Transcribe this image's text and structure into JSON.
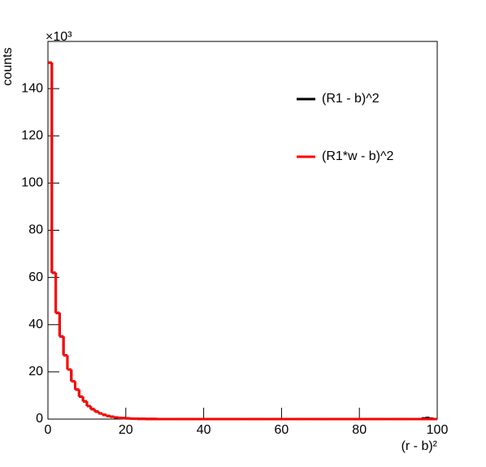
{
  "chart_data": {
    "type": "histogram",
    "y_label": "counts",
    "x_label": "(r - b)²",
    "y_multiplier": "×10³",
    "bins": [
      0,
      1,
      2,
      3,
      4,
      5,
      6,
      7,
      8,
      9,
      10,
      11,
      12,
      13,
      14,
      15,
      16,
      17,
      18,
      19,
      20,
      21,
      22,
      23,
      24,
      25,
      26,
      27,
      28,
      29,
      30,
      31,
      32,
      33,
      34,
      35,
      36,
      37,
      38,
      39,
      40,
      41,
      42,
      43,
      44,
      45,
      46,
      47,
      48,
      49,
      50,
      51,
      52,
      53,
      54,
      55,
      56,
      57,
      58,
      59,
      60,
      61,
      62,
      63,
      64,
      65,
      66,
      67,
      68,
      69,
      70,
      71,
      72,
      73,
      74,
      75,
      76,
      77,
      78,
      79,
      80,
      81,
      82,
      83,
      84,
      85,
      86,
      87,
      88,
      89,
      90,
      91,
      92,
      93,
      94,
      95,
      96,
      97,
      98,
      99,
      100
    ],
    "series": [
      {
        "name": "(R1 - b)^2",
        "color": "#000000",
        "values": [
          151,
          62,
          45,
          35,
          27,
          21,
          16,
          12.5,
          9.5,
          7.5,
          5.5,
          4.2,
          3.2,
          2.4,
          1.8,
          1.3,
          1,
          0.7,
          0.5,
          0.4,
          0.3,
          0.2,
          0.15,
          0.1,
          0.1,
          0.05,
          0.05,
          0.05,
          0,
          0,
          0,
          0,
          0,
          0,
          0,
          0,
          0,
          0,
          0,
          0,
          0,
          0,
          0,
          0,
          0,
          0,
          0,
          0,
          0,
          0,
          0,
          0,
          0,
          0,
          0,
          0,
          0,
          0,
          0,
          0,
          0,
          0,
          0,
          0,
          0,
          0,
          0,
          0,
          0,
          0,
          0,
          0,
          0,
          0,
          0,
          0,
          0,
          0,
          0,
          0,
          0,
          0,
          0,
          0,
          0,
          0,
          0,
          0,
          0,
          0,
          0,
          0,
          0,
          0,
          0,
          0,
          0.3,
          0.5,
          0.2,
          0
        ]
      },
      {
        "name": "(R1*w - b)^2",
        "color": "#ff0000",
        "values": [
          151,
          62,
          45,
          35,
          27,
          21,
          16,
          12.5,
          9.5,
          7.5,
          5.5,
          4.2,
          3.2,
          2.4,
          1.8,
          1.3,
          1,
          0.7,
          0.5,
          0.4,
          0.3,
          0.2,
          0.15,
          0.1,
          0.1,
          0.05,
          0.05,
          0.05,
          0,
          0,
          0,
          0,
          0,
          0,
          0,
          0,
          0,
          0,
          0,
          0,
          0,
          0,
          0,
          0,
          0,
          0,
          0,
          0,
          0,
          0,
          0,
          0,
          0,
          0,
          0,
          0,
          0,
          0,
          0,
          0,
          0,
          0,
          0,
          0,
          0,
          0,
          0,
          0,
          0,
          0,
          0,
          0,
          0,
          0,
          0,
          0,
          0,
          0,
          0,
          0,
          0,
          0,
          0,
          0,
          0,
          0,
          0,
          0,
          0,
          0,
          0,
          0,
          0,
          0,
          0,
          0,
          0,
          0,
          0,
          0
        ]
      }
    ],
    "xlim": [
      0,
      100
    ],
    "xticks": [
      0,
      20,
      40,
      60,
      80,
      100
    ],
    "ylim": [
      0,
      160
    ],
    "yticks": [
      0,
      20,
      40,
      60,
      80,
      100,
      120,
      140
    ]
  }
}
